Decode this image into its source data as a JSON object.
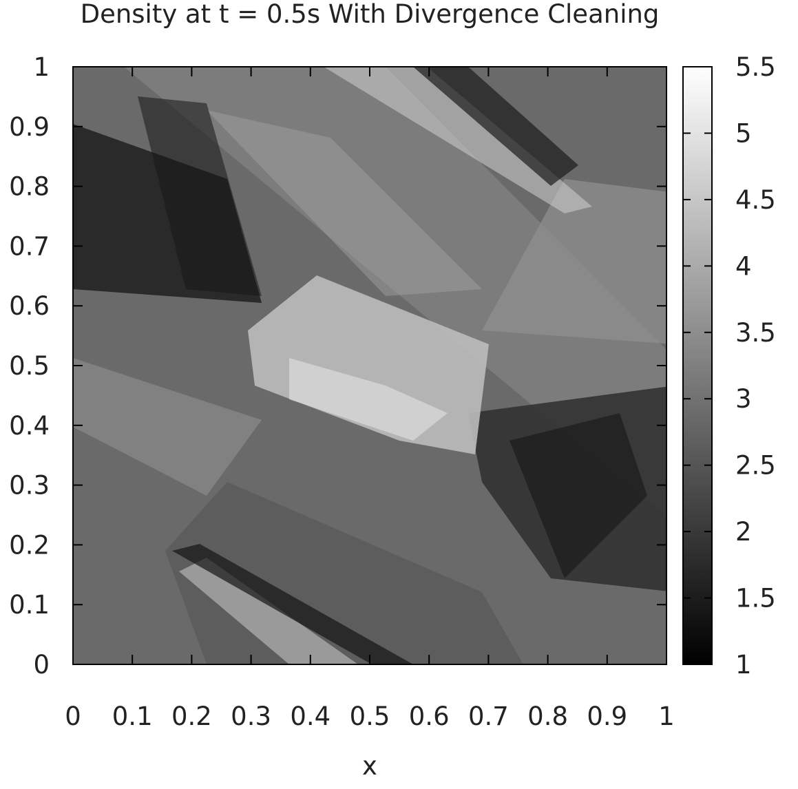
{
  "chart_data": {
    "type": "heatmap",
    "title": "Density at t = 0.5s With Divergence Cleaning",
    "xlabel": "x",
    "ylabel": "",
    "xlim": [
      0,
      1
    ],
    "ylim": [
      0,
      1
    ],
    "x_ticks": [
      "0",
      "0.1",
      "0.2",
      "0.3",
      "0.4",
      "0.5",
      "0.6",
      "0.7",
      "0.8",
      "0.9",
      "1"
    ],
    "y_ticks": [
      "0",
      "0.1",
      "0.2",
      "0.3",
      "0.4",
      "0.5",
      "0.6",
      "0.7",
      "0.8",
      "0.9",
      "1"
    ],
    "colorbar": {
      "min": 1,
      "max": 5.5,
      "ticks": [
        "1",
        "1.5",
        "2",
        "2.5",
        "3",
        "3.5",
        "4",
        "4.5",
        "5",
        "5.5"
      ],
      "colormap": "grayscale",
      "low_color": "#000000",
      "high_color": "#ffffff"
    },
    "grid": false,
    "field": "density"
  }
}
